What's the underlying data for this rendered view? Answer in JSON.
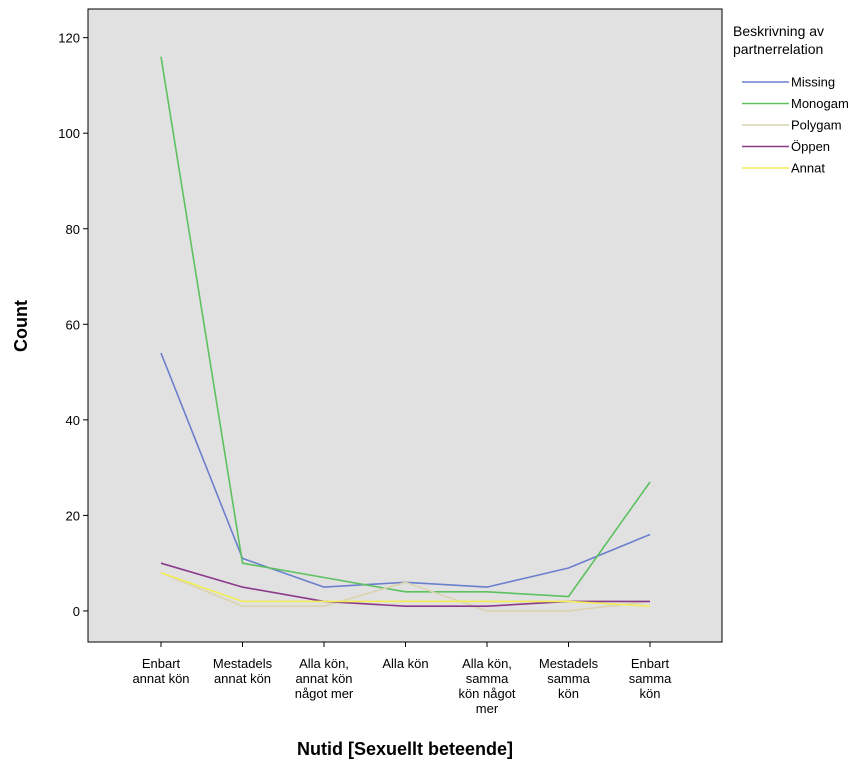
{
  "chart_data": {
    "type": "line",
    "xlabel": "Nutid [Sexuellt beteende]",
    "ylabel": "Count",
    "ylim": [
      -6.5,
      126
    ],
    "yticks": [
      0,
      20,
      40,
      60,
      80,
      100,
      120
    ],
    "grid": false,
    "background_color": "#e1e1e1",
    "categories": [
      [
        "Enbart",
        "annat kön"
      ],
      [
        "Mestadels",
        "annat kön"
      ],
      [
        "Alla kön,",
        "annat kön",
        "något mer"
      ],
      [
        "Alla kön"
      ],
      [
        "Alla kön,",
        "samma",
        "kön något",
        "mer"
      ],
      [
        "Mestadels",
        "samma",
        "kön"
      ],
      [
        "Enbart",
        "samma",
        "kön"
      ]
    ],
    "legend": {
      "title": [
        "Beskrivning av",
        "partnerrelation"
      ],
      "position": "right"
    },
    "series": [
      {
        "name": "Missing",
        "color": "#6b7fce",
        "values": [
          54,
          11,
          5,
          6,
          5,
          9,
          16
        ]
      },
      {
        "name": "Monogam",
        "color": "#5ec160",
        "values": [
          116,
          10,
          7,
          4,
          4,
          3,
          27
        ]
      },
      {
        "name": "Polygam",
        "color": "#d9d3b0",
        "values": [
          8,
          1,
          1,
          6,
          0,
          0,
          2
        ]
      },
      {
        "name": "Öppen",
        "color": "#8b3a8c",
        "values": [
          10,
          5,
          2,
          1,
          1,
          2,
          2
        ]
      },
      {
        "name": "Annat",
        "color": "#f2ec55",
        "values": [
          8,
          2,
          2,
          2,
          2,
          2,
          1
        ]
      }
    ]
  }
}
